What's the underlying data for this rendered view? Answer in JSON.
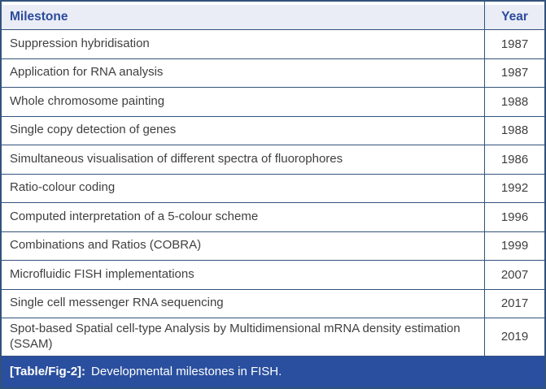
{
  "figure": {
    "header": {
      "milestone": "Milestone",
      "year": "Year"
    },
    "rows": [
      {
        "milestone": "Suppression hybridisation",
        "year": "1987"
      },
      {
        "milestone": "Application for RNA analysis",
        "year": "1987"
      },
      {
        "milestone": "Whole chromosome painting",
        "year": "1988"
      },
      {
        "milestone": "Single copy detection of genes",
        "year": "1988"
      },
      {
        "milestone": "Simultaneous visualisation of different spectra of fluorophores",
        "year": "1986"
      },
      {
        "milestone": "Ratio-colour coding",
        "year": "1992"
      },
      {
        "milestone": "Computed interpretation of a 5-colour scheme",
        "year": "1996"
      },
      {
        "milestone": "Combinations and Ratios (COBRA)",
        "year": "1999"
      },
      {
        "milestone": "Microfluidic FISH implementations",
        "year": "2007"
      },
      {
        "milestone": "Single cell messenger RNA sequencing",
        "year": "2017"
      },
      {
        "milestone": "Spot-based Spatial cell-type Analysis by Multidimensional mRNA density estimation (SSAM)",
        "year": "2019"
      }
    ],
    "caption": {
      "label": "[Table/Fig-2]:",
      "text": "Developmental milestones in FISH."
    }
  },
  "colors": {
    "border": "#31527b",
    "header_bg": "#eaedf6",
    "header_text": "#2c4b9c",
    "caption_bg": "#2a4f9e",
    "caption_text": "#ffffff",
    "row_text": "#3f3f3f",
    "row_bg": "#ffffff"
  }
}
